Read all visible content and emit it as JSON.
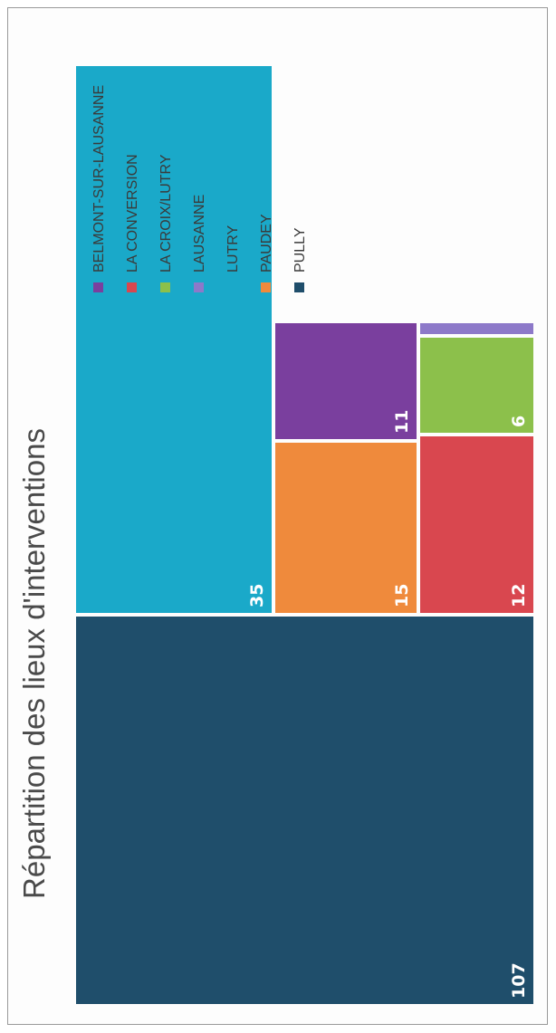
{
  "chart_data": {
    "type": "treemap",
    "title": "Répartition des lieux d'interventions",
    "items": [
      {
        "name": "PULLY",
        "value": 107,
        "color": "#1f4e6b",
        "label": "107"
      },
      {
        "name": "LUTRY",
        "value": 35,
        "color": "#1aa9c9",
        "label": "35"
      },
      {
        "name": "PAUDEY",
        "value": 15,
        "color": "#ef8a3c",
        "label": "15"
      },
      {
        "name": "LA CONVERSION",
        "value": 12,
        "color": "#d9474f",
        "label": "12"
      },
      {
        "name": "BELMONT-SUR-LAUSANNE",
        "value": 11,
        "color": "#7a3f9e",
        "label": "11"
      },
      {
        "name": "LA CROIX/LUTRY",
        "value": 6,
        "color": "#8cc04b",
        "label": "6"
      },
      {
        "name": "LAUSANNE",
        "value": 1,
        "color": "#8d79c9",
        "label": ""
      }
    ],
    "legend": [
      "BELMONT-SUR-LAUSANNE",
      "LA CONVERSION",
      "LA CROIX/LUTRY",
      "LAUSANNE",
      "LUTRY",
      "PAUDEY",
      "PULLY"
    ],
    "legend_position": "right"
  }
}
